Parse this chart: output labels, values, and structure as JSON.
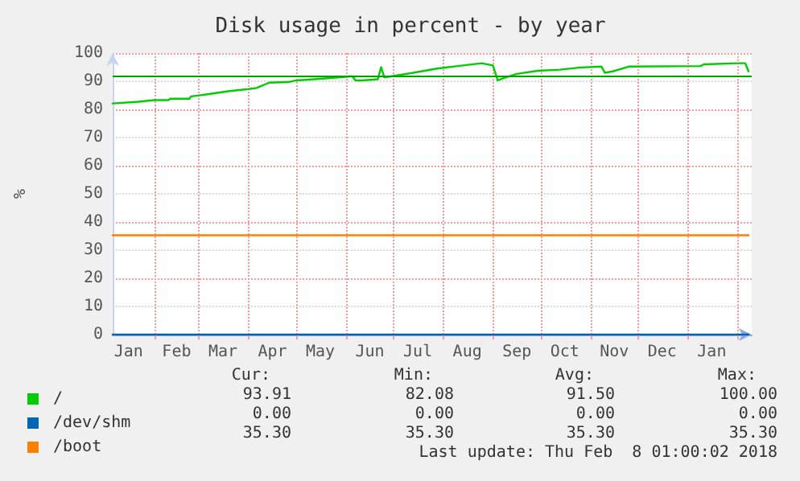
{
  "chart_data": {
    "type": "line",
    "title": "Disk usage in percent - by year",
    "ylabel": "%",
    "xlim": [
      "2017-01-06",
      "2018-02-10"
    ],
    "xticks": [
      {
        "value": "2017-01-16",
        "label": "Jan"
      },
      {
        "value": "2017-02-01",
        "label": null
      },
      {
        "value": "2017-02-15",
        "label": "Feb"
      },
      {
        "value": "2017-03-01",
        "label": null
      },
      {
        "value": "2017-03-16",
        "label": "Mar"
      },
      {
        "value": "2017-04-01",
        "label": null
      },
      {
        "value": "2017-04-16",
        "label": "Apr"
      },
      {
        "value": "2017-05-01",
        "label": null
      },
      {
        "value": "2017-05-16",
        "label": "May"
      },
      {
        "value": "2017-06-01",
        "label": null
      },
      {
        "value": "2017-06-16",
        "label": "Jun"
      },
      {
        "value": "2017-07-01",
        "label": null
      },
      {
        "value": "2017-07-16",
        "label": "Jul"
      },
      {
        "value": "2017-08-01",
        "label": null
      },
      {
        "value": "2017-08-16",
        "label": "Aug"
      },
      {
        "value": "2017-09-01",
        "label": null
      },
      {
        "value": "2017-09-16",
        "label": "Sep"
      },
      {
        "value": "2017-10-01",
        "label": null
      },
      {
        "value": "2017-10-16",
        "label": "Oct"
      },
      {
        "value": "2017-11-01",
        "label": null
      },
      {
        "value": "2017-11-16",
        "label": "Nov"
      },
      {
        "value": "2017-12-01",
        "label": null
      },
      {
        "value": "2017-12-16",
        "label": "Dec"
      },
      {
        "value": "2018-01-01",
        "label": null
      },
      {
        "value": "2018-01-16",
        "label": "Jan"
      },
      {
        "value": "2018-02-01",
        "label": null
      }
    ],
    "ylim": [
      0,
      100
    ],
    "yticks": [
      0,
      10,
      20,
      30,
      40,
      50,
      60,
      70,
      80,
      90,
      100
    ],
    "grid": true,
    "legend": "bottom left",
    "marker": "none",
    "line_style": "solid",
    "series": [
      {
        "name": "/",
        "color": "#00cc00",
        "x": [
          "2017-01-06",
          "2017-01-22",
          "2017-02-01",
          "2017-02-10",
          "2017-02-11",
          "2017-02-23",
          "2017-02-24",
          "2017-03-03",
          "2017-03-20",
          "2017-04-01",
          "2017-04-06",
          "2017-04-14",
          "2017-04-26",
          "2017-05-01",
          "2017-05-12",
          "2017-05-19",
          "2017-06-05",
          "2017-06-07",
          "2017-06-11",
          "2017-06-21",
          "2017-06-23",
          "2017-06-25",
          "2017-06-30",
          "2017-07-13",
          "2017-07-28",
          "2017-08-10",
          "2017-08-25",
          "2017-09-01",
          "2017-09-04",
          "2017-09-08",
          "2017-09-16",
          "2017-09-29",
          "2017-10-13",
          "2017-10-26",
          "2017-11-08",
          "2017-11-10",
          "2017-11-15",
          "2017-11-25",
          "2018-01-09",
          "2018-01-11",
          "2018-02-01",
          "2018-02-06",
          "2018-02-08"
        ],
        "values": [
          82.1,
          82.7,
          83.3,
          83.3,
          83.8,
          83.8,
          84.6,
          85.1,
          86.5,
          87.2,
          87.6,
          89.5,
          89.7,
          90.3,
          90.7,
          91.0,
          91.8,
          90.3,
          90.3,
          90.7,
          95.0,
          91.4,
          91.8,
          93.0,
          94.5,
          95.4,
          96.4,
          95.6,
          90.3,
          91.2,
          92.6,
          93.7,
          94.1,
          94.9,
          95.2,
          93.0,
          93.5,
          95.2,
          95.4,
          96.0,
          96.4,
          96.4,
          93.5
        ]
      },
      {
        "name": "/dev/shm",
        "color": "#0066b3",
        "x": [
          "2017-01-06",
          "2018-02-08"
        ],
        "values": [
          0,
          0
        ]
      },
      {
        "name": "/boot",
        "color": "#ff8000",
        "x": [
          "2017-01-06",
          "2018-02-08"
        ],
        "values": [
          35.3,
          35.3
        ]
      }
    ],
    "ref_lines": [
      {
        "axis": "y",
        "value": 92,
        "label": null,
        "color": "#00a000"
      }
    ],
    "annotations": [
      "Cur:",
      "Min:",
      "Avg:",
      "Max:",
      "93.91",
      "82.08",
      "91.50",
      "100.00",
      "0.00",
      "0.00",
      "0.00",
      "0.00",
      "35.30",
      "35.30",
      "35.30",
      "35.30",
      "Last update: Thu Feb  8 01:00:02 2018"
    ]
  }
}
